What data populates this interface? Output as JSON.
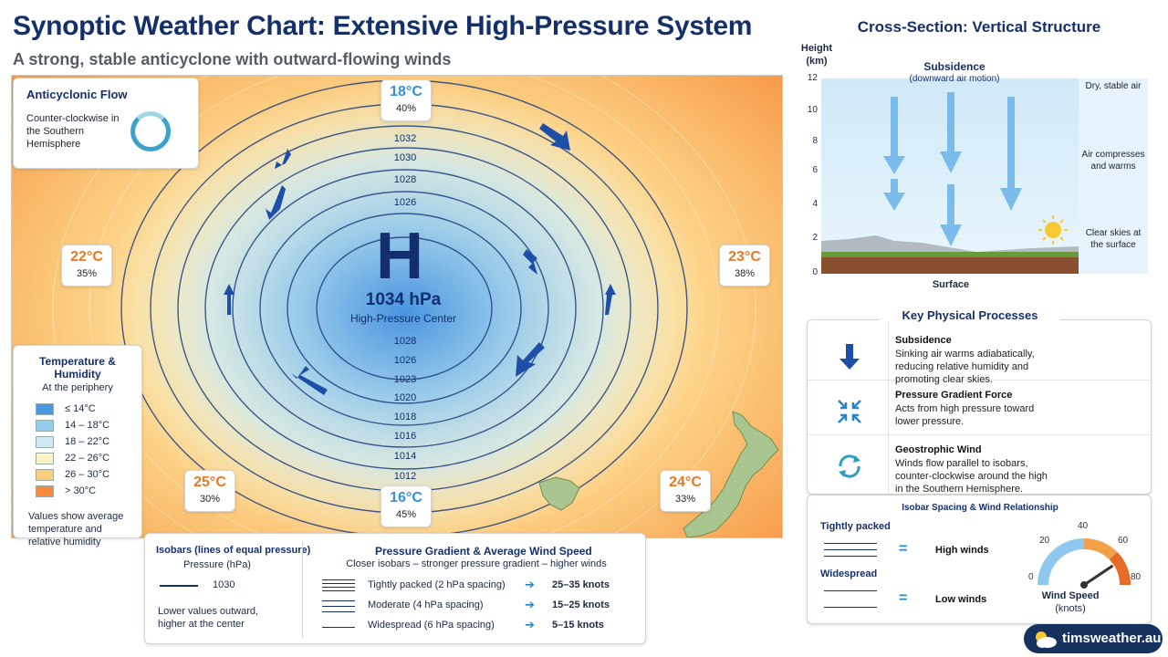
{
  "header": {
    "title": "Synoptic Weather Chart: Extensive High-Pressure System",
    "subtitle": "A strong, stable anticyclone with outward-flowing winds"
  },
  "map": {
    "flow_card": {
      "title": "Anticyclonic Flow",
      "text": "Counter-clockwise in the Southern Hemisphere"
    },
    "stations": [
      {
        "temp": "18°C",
        "humidity": "40%",
        "style": "cool"
      },
      {
        "temp": "22°C",
        "humidity": "35%",
        "style": "warm"
      },
      {
        "temp": "23°C",
        "humidity": "38%",
        "style": "warm"
      },
      {
        "temp": "25°C",
        "humidity": "30%",
        "style": "warm"
      },
      {
        "temp": "16°C",
        "humidity": "45%",
        "style": "cool"
      },
      {
        "temp": "24°C",
        "humidity": "33%",
        "style": "warm"
      }
    ],
    "center": {
      "letter": "H",
      "pressure": "1034 hPa",
      "label": "High-Pressure Center"
    },
    "isobar_labels_top": [
      "1032",
      "1030",
      "1028",
      "1026"
    ],
    "isobar_labels_bottom": [
      "1028",
      "1026",
      "1023",
      "1020",
      "1018",
      "1016",
      "1014",
      "1012"
    ],
    "legend": {
      "title": "Temperature & Humidity",
      "subtitle": "At the periphery",
      "items": [
        {
          "label": "≤ 14°C",
          "color": "#4a98e0"
        },
        {
          "label": "14 – 18°C",
          "color": "#93cdee"
        },
        {
          "label": "18 – 22°C",
          "color": "#cfeaf4"
        },
        {
          "label": "22 – 26°C",
          "color": "#fdf3c2"
        },
        {
          "label": "26 – 30°C",
          "color": "#fbce7c"
        },
        {
          "label": "> 30°C",
          "color": "#f5893e"
        }
      ],
      "note": "Values show average temperature and relative humidity"
    }
  },
  "info_panel": {
    "isobars": {
      "title": "Isobars (lines of equal pressure)",
      "unit": "Pressure (hPa)",
      "example_value": "1030",
      "description": "Lower values outward, higher at the center"
    },
    "gradient": {
      "title": "Pressure Gradient & Average Wind Speed",
      "subtitle": "Closer isobars – stronger pressure gradient – higher winds",
      "rows": [
        {
          "label": "Tightly packed (2 hPa spacing)",
          "speed": "25–35 knots"
        },
        {
          "label": "Moderate (4 hPa spacing)",
          "speed": "15–25 knots"
        },
        {
          "label": "Widespread (6 hPa spacing)",
          "speed": "5–15 knots"
        }
      ]
    }
  },
  "cross_section": {
    "title": "Cross-Section: Vertical Structure",
    "y_label": "Height (km)",
    "y_ticks": [
      "12",
      "10",
      "8",
      "6",
      "4",
      "2",
      "0"
    ],
    "subsidence_title": "Subsidence",
    "subsidence_sub": "(downward air motion)",
    "notes": [
      "Dry, stable air",
      "Air compresses and warms",
      "Clear skies at the surface"
    ],
    "surface_label": "Surface"
  },
  "key_processes": {
    "title": "Key Physical Processes",
    "items": [
      {
        "name": "Subsidence",
        "desc": "Sinking air warms adiabatically, reducing relative humidity and promoting clear skies.",
        "icon": "down-arrow-icon"
      },
      {
        "name": "Pressure Gradient Force",
        "desc": "Acts from high pressure toward lower pressure.",
        "icon": "compress-arrows-icon"
      },
      {
        "name": "Geostrophic Wind",
        "desc": "Winds flow parallel to isobars, counter-clockwise around the high in the Southern Hemisphere.",
        "icon": "circular-arrows-icon"
      }
    ]
  },
  "relationship": {
    "title": "Isobar Spacing & Wind Relationship",
    "tight_label": "Tightly packed",
    "tight_result": "High winds",
    "wide_label": "Widespread",
    "wide_result": "Low winds",
    "gauge": {
      "ticks": [
        "0",
        "20",
        "40",
        "60",
        "80"
      ],
      "title": "Wind Speed",
      "unit": "(knots)",
      "value": 65
    }
  },
  "brand": {
    "text": "timsweather.au"
  }
}
